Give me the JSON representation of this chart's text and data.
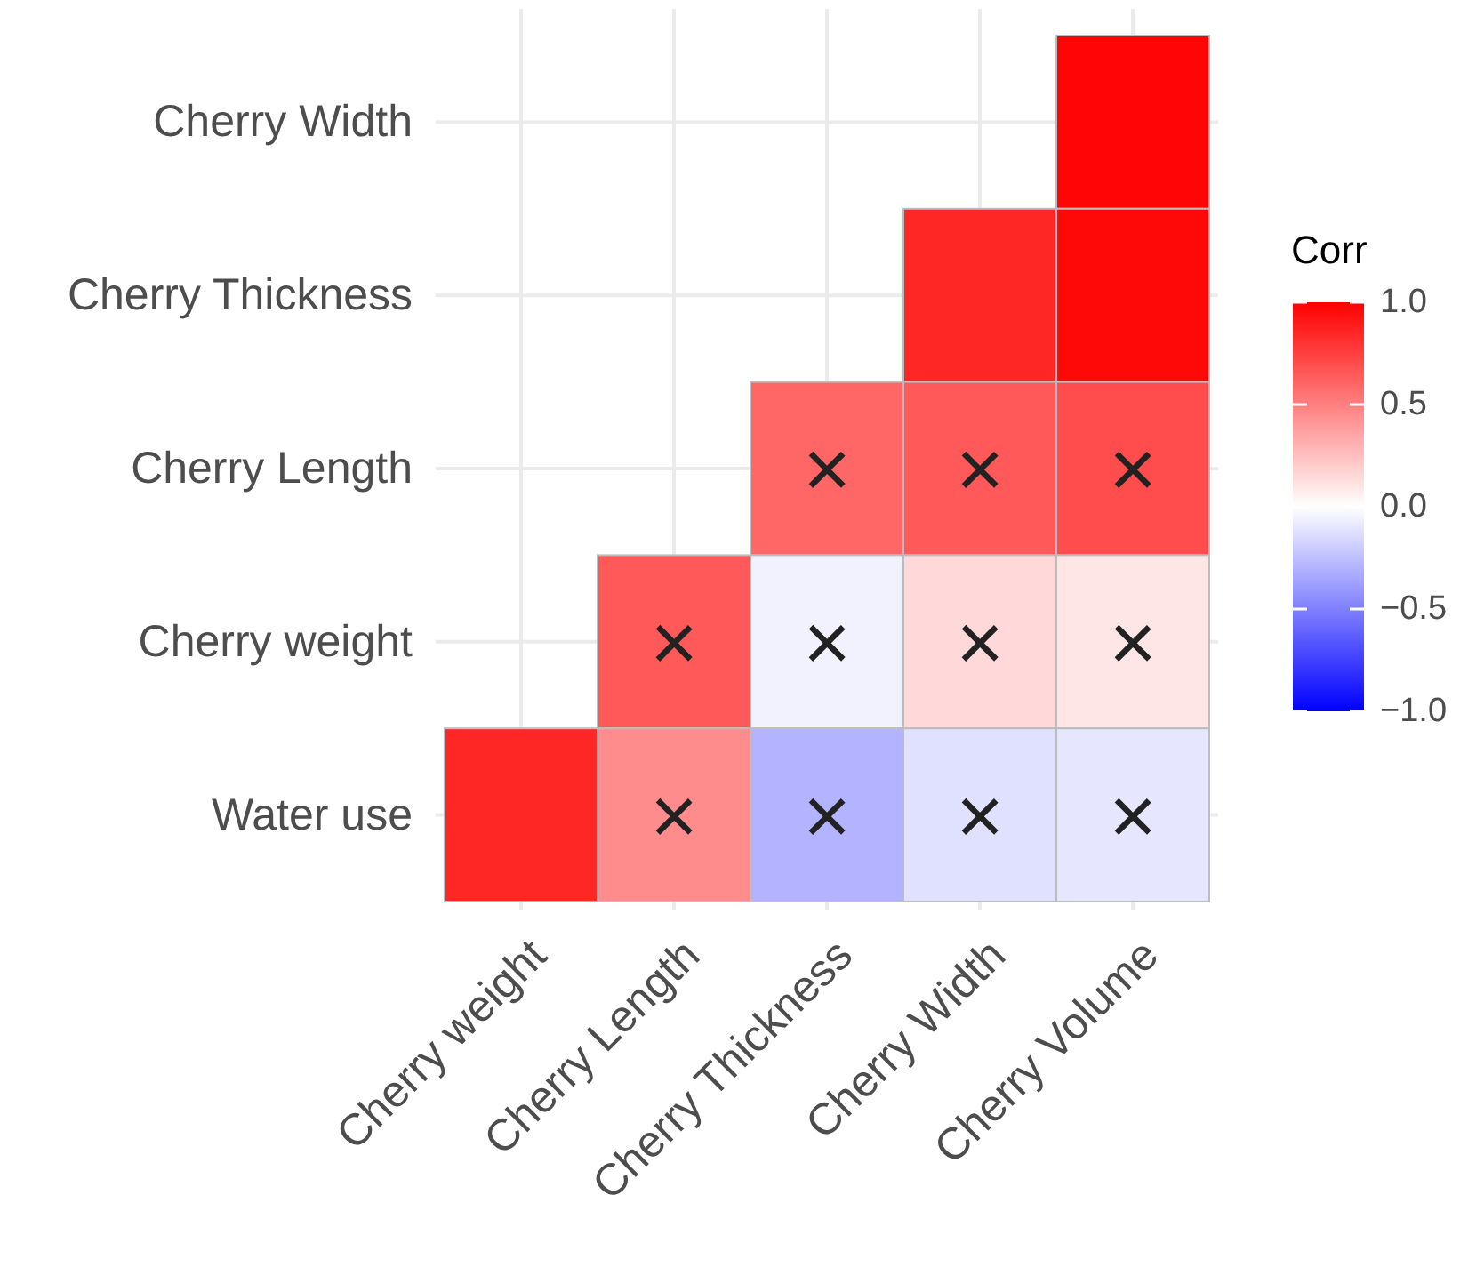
{
  "chart_data": {
    "type": "heatmap",
    "categories": [
      "Cherry weight",
      "Cherry Length",
      "Cherry Thickness",
      "Cherry Width",
      "Cherry Volume"
    ],
    "y_categories": [
      "Cherry Width",
      "Cherry Thickness",
      "Cherry Length",
      "Cherry weight",
      "Water use"
    ],
    "cells": [
      [
        null,
        null,
        null,
        null,
        0.98
      ],
      [
        null,
        null,
        null,
        0.85,
        0.97
      ],
      [
        null,
        null,
        0.6,
        0.65,
        0.7
      ],
      [
        null,
        0.65,
        -0.05,
        0.15,
        0.1
      ],
      [
        0.85,
        0.45,
        -0.3,
        -0.12,
        -0.1
      ]
    ],
    "cell_labels": [
      [
        null,
        null,
        null,
        null,
        null
      ],
      [
        null,
        null,
        null,
        null,
        null
      ],
      [
        null,
        null,
        "×",
        "×",
        "×"
      ],
      [
        null,
        "×",
        "×",
        "×",
        "×"
      ],
      [
        null,
        "×",
        "×",
        "×",
        "×"
      ]
    ],
    "clabel": "Corr",
    "clim": [
      -1,
      1
    ],
    "cticks": [
      {
        "value": 1,
        "label": "1.0"
      },
      {
        "value": 0.5,
        "label": "0.5"
      },
      {
        "value": 0,
        "label": "0.0"
      },
      {
        "value": -0.5,
        "label": "−0.5"
      },
      {
        "value": -1,
        "label": "−1.0"
      }
    ],
    "grid": true
  }
}
